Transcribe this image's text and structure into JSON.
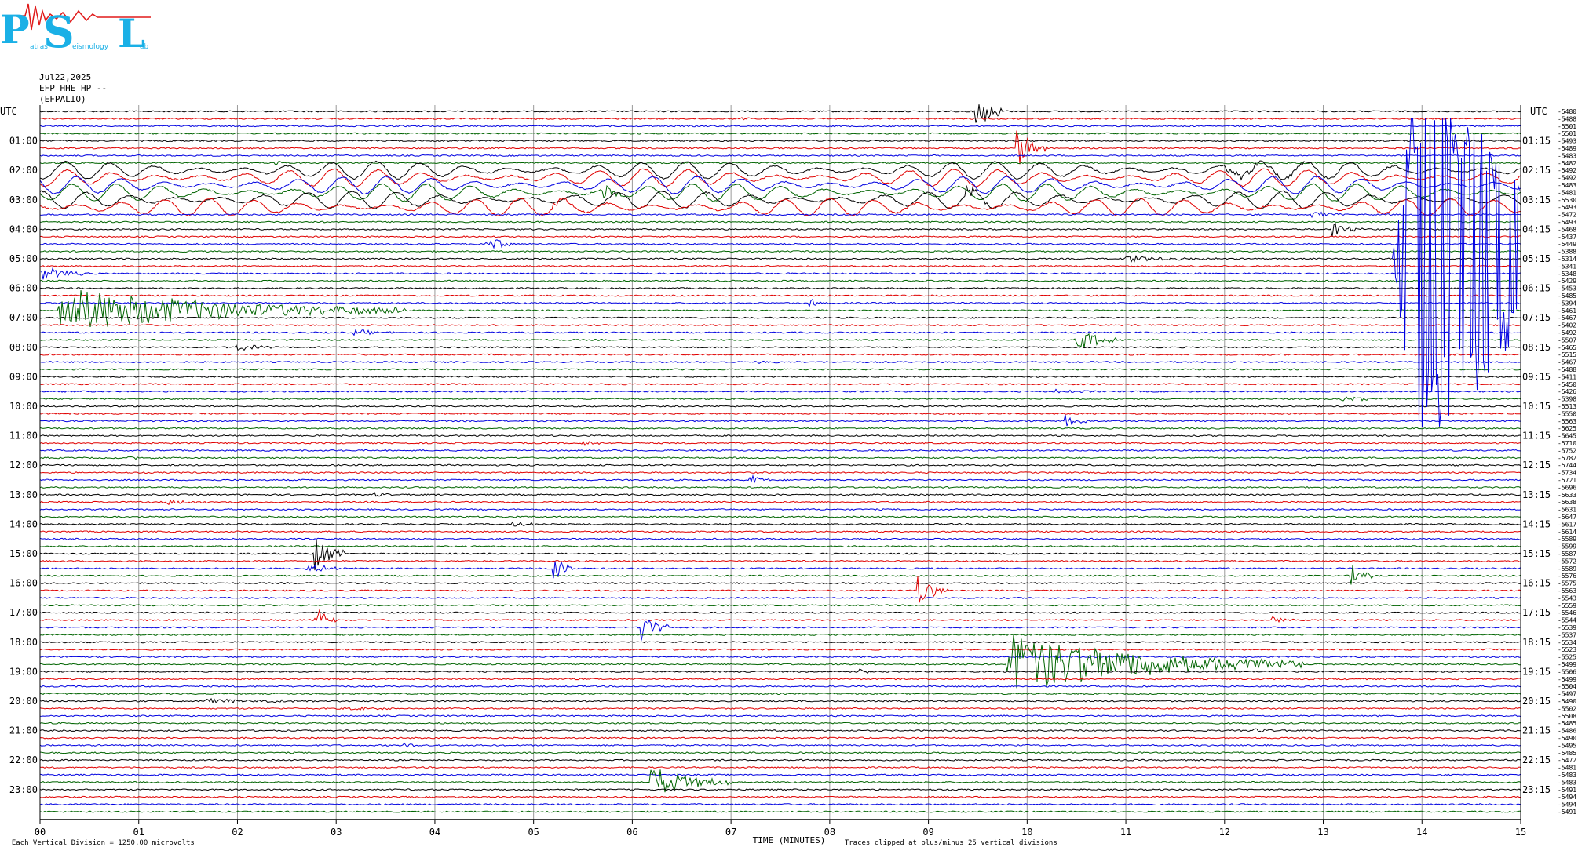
{
  "logo": {
    "letters": [
      "P",
      "S",
      "L"
    ],
    "subtext": [
      "atras",
      "eismology",
      "ab"
    ],
    "colors": {
      "cyan": "#1ab0e6",
      "red": "#e01a1a"
    }
  },
  "header": {
    "date": "Jul22,2025",
    "channel": "EFP HHE HP --",
    "station": "(EFPALIO)"
  },
  "chart_data": {
    "type": "line",
    "title": "",
    "xlabel": "TIME (MINUTES)",
    "xlim": [
      0,
      15
    ],
    "x_ticks": [
      "00",
      "01",
      "02",
      "03",
      "04",
      "05",
      "06",
      "07",
      "08",
      "09",
      "10",
      "11",
      "12",
      "13",
      "14",
      "15"
    ],
    "left_axis_title": "UTC",
    "right_axis_title": "UTC",
    "left_hour_labels": [
      "01:00",
      "02:00",
      "03:00",
      "04:00",
      "05:00",
      "06:00",
      "07:00",
      "08:00",
      "09:00",
      "10:00",
      "11:00",
      "12:00",
      "13:00",
      "14:00",
      "15:00",
      "16:00",
      "17:00",
      "18:00",
      "19:00",
      "20:00",
      "21:00",
      "22:00",
      "23:00"
    ],
    "right_hour_labels": [
      "01:15",
      "02:15",
      "03:15",
      "04:15",
      "05:15",
      "06:15",
      "07:15",
      "08:15",
      "09:15",
      "10:15",
      "11:15",
      "12:15",
      "13:15",
      "14:15",
      "15:15",
      "16:15",
      "17:15",
      "18:15",
      "19:15",
      "20:15",
      "21:15",
      "22:15",
      "23:15"
    ],
    "trace_colors": [
      "#000000",
      "#e00000",
      "#0000e0",
      "#006400"
    ],
    "trace_count": 96,
    "trace_offsets": [
      "-5480",
      "-5488",
      "-5501",
      "-5501",
      "-5493",
      "-5489",
      "-5483",
      "-5482",
      "-5492",
      "-5492",
      "-5483",
      "-5481",
      "-5530",
      "-5493",
      "-5472",
      "-5493",
      "-5468",
      "-5437",
      "-5449",
      "-5388",
      "-5314",
      "-5341",
      "-5348",
      "-5429",
      "-5453",
      "-5485",
      "-5394",
      "-5461",
      "-5467",
      "-5402",
      "-5492",
      "-5507",
      "-5465",
      "-5515",
      "-5467",
      "-5488",
      "-5411",
      "-5450",
      "-5426",
      "-5398",
      "-5513",
      "-5550",
      "-5563",
      "-5625",
      "-5645",
      "-5710",
      "-5752",
      "-5782",
      "-5744",
      "-5734",
      "-5721",
      "-5696",
      "-5633",
      "-5638",
      "-5631",
      "-5647",
      "-5617",
      "-5614",
      "-5589",
      "-5599",
      "-5587",
      "-5572",
      "-5589",
      "-5576",
      "-5575",
      "-5563",
      "-5543",
      "-5559",
      "-5546",
      "-5544",
      "-5539",
      "-5537",
      "-5534",
      "-5523",
      "-5525",
      "-5499",
      "-5506",
      "-5499",
      "-5504",
      "-5497",
      "-5490",
      "-5502",
      "-5508",
      "-5485",
      "-5486",
      "-5490",
      "-5495",
      "-5485",
      "-5472",
      "-5481",
      "-5483",
      "-5483",
      "-5491",
      "-5494",
      "-5494",
      "-5491"
    ],
    "events": [
      {
        "row": 0,
        "minute": 9.5,
        "amp": 22,
        "dur": 0.3
      },
      {
        "row": 1,
        "minute": 7.1,
        "amp": 3,
        "dur": 0.1
      },
      {
        "row": 5,
        "minute": 9.9,
        "amp": 25,
        "dur": 0.3
      },
      {
        "row": 7,
        "minute": 2.4,
        "amp": 3,
        "dur": 0.1
      },
      {
        "row": 8,
        "minute": 12.0,
        "amp": 5,
        "dur": 1.8
      },
      {
        "row": 11,
        "minute": 5.7,
        "amp": 14,
        "dur": 0.2
      },
      {
        "row": 12,
        "minute": 9.4,
        "amp": 10,
        "dur": 0.2
      },
      {
        "row": 13,
        "minute": 5.2,
        "amp": 4,
        "dur": 0.5
      },
      {
        "row": 14,
        "minute": 12.9,
        "amp": 4,
        "dur": 0.4
      },
      {
        "row": 16,
        "minute": 13.1,
        "amp": 12,
        "dur": 0.3
      },
      {
        "row": 18,
        "minute": 4.5,
        "amp": 12,
        "dur": 0.3
      },
      {
        "row": 20,
        "minute": 11.0,
        "amp": 4,
        "dur": 1.0
      },
      {
        "row": 22,
        "minute": 0.0,
        "amp": 10,
        "dur": 0.5
      },
      {
        "row": 26,
        "minute": 7.8,
        "amp": 6,
        "dur": 0.2
      },
      {
        "row": 27,
        "minute": 0.2,
        "amp": 30,
        "dur": 3.5
      },
      {
        "row": 30,
        "minute": 3.2,
        "amp": 4,
        "dur": 0.4
      },
      {
        "row": 31,
        "minute": 10.5,
        "amp": 16,
        "dur": 0.4
      },
      {
        "row": 32,
        "minute": 2.0,
        "amp": 5,
        "dur": 0.4
      },
      {
        "row": 34,
        "minute": 7.3,
        "amp": 2,
        "dur": 0.4
      },
      {
        "row": 38,
        "minute": 10.3,
        "amp": 3,
        "dur": 0.4
      },
      {
        "row": 39,
        "minute": 13.2,
        "amp": 3,
        "dur": 0.6
      },
      {
        "row": 42,
        "minute": 10.4,
        "amp": 12,
        "dur": 0.2
      },
      {
        "row": 45,
        "minute": 5.5,
        "amp": 4,
        "dur": 0.3
      },
      {
        "row": 47,
        "minute": 0.9,
        "amp": 3,
        "dur": 0.3
      },
      {
        "row": 50,
        "minute": 7.2,
        "amp": 6,
        "dur": 0.2
      },
      {
        "row": 52,
        "minute": 3.4,
        "amp": 3,
        "dur": 0.2
      },
      {
        "row": 53,
        "minute": 1.3,
        "amp": 3,
        "dur": 0.6
      },
      {
        "row": 56,
        "minute": 4.8,
        "amp": 3,
        "dur": 0.5
      },
      {
        "row": 60,
        "minute": 2.8,
        "amp": 22,
        "dur": 0.3
      },
      {
        "row": 62,
        "minute": 5.2,
        "amp": 18,
        "dur": 0.2
      },
      {
        "row": 62,
        "minute": 2.7,
        "amp": 6,
        "dur": 0.5
      },
      {
        "row": 65,
        "minute": 8.9,
        "amp": 18,
        "dur": 0.3
      },
      {
        "row": 63,
        "minute": 13.3,
        "amp": 14,
        "dur": 0.2
      },
      {
        "row": 69,
        "minute": 2.8,
        "amp": 20,
        "dur": 0.2
      },
      {
        "row": 70,
        "minute": 6.1,
        "amp": 18,
        "dur": 0.3
      },
      {
        "row": 69,
        "minute": 12.5,
        "amp": 6,
        "dur": 0.2
      },
      {
        "row": 75,
        "minute": 9.8,
        "amp": 40,
        "dur": 3.0
      },
      {
        "row": 76,
        "minute": 8.3,
        "amp": 5,
        "dur": 0.1
      },
      {
        "row": 80,
        "minute": 1.7,
        "amp": 3,
        "dur": 1.5
      },
      {
        "row": 81,
        "minute": 3.1,
        "amp": 3,
        "dur": 0.5
      },
      {
        "row": 84,
        "minute": 12.3,
        "amp": 3,
        "dur": 0.3
      },
      {
        "row": 86,
        "minute": 3.7,
        "amp": 3,
        "dur": 0.4
      },
      {
        "row": 91,
        "minute": 6.2,
        "amp": 20,
        "dur": 0.8
      }
    ],
    "swell_rows": [
      8,
      9,
      10,
      11,
      12,
      13
    ],
    "big_event": {
      "row_start": 2,
      "row_end": 50,
      "minute_start": 13.7,
      "minute_end": 15.0,
      "color": "#0000e0"
    },
    "footer_left": "Each Vertical Division = 1250.00 microvolts",
    "footer_right": "Traces clipped at plus/minus 25 vertical divisions"
  }
}
